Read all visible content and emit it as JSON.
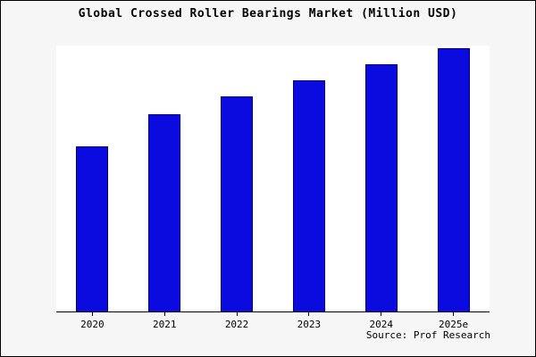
{
  "chart_data": {
    "type": "bar",
    "title": "Global Crossed Roller Bearings Market (Million USD)",
    "categories": [
      "2020",
      "2021",
      "2022",
      "2023",
      "2024",
      "2025e"
    ],
    "values": [
      62,
      74,
      81,
      87,
      93,
      99
    ],
    "ylim": [
      0,
      100
    ],
    "xlabel": "",
    "ylabel": "",
    "grid": false,
    "legend_position": "none",
    "bar_color": "#0b0be0",
    "bar_edge_color": "#00007e",
    "source": "Source: Prof Research"
  }
}
